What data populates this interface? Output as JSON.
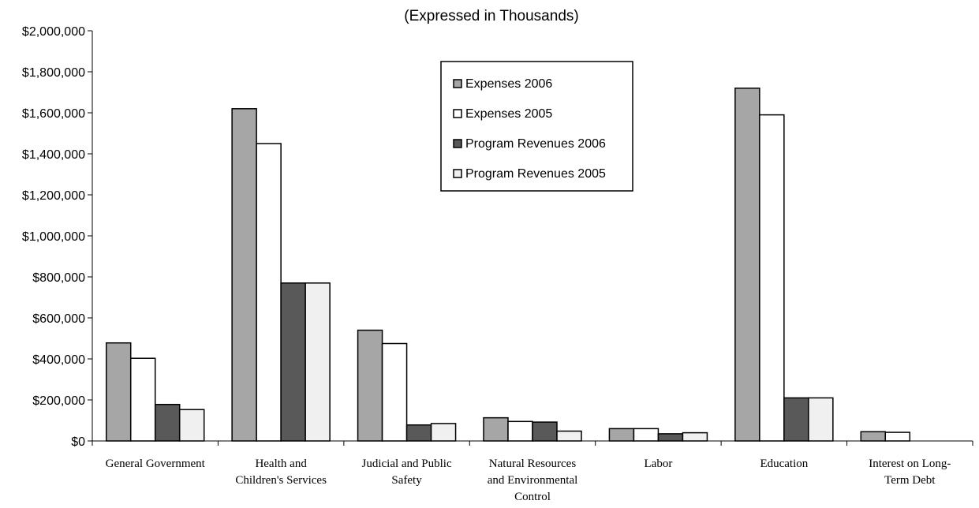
{
  "chart_data": {
    "type": "bar",
    "title": "(Expressed in Thousands)",
    "xlabel": "",
    "ylabel": "",
    "ylim": [
      0,
      2000000
    ],
    "yticks": [
      "$0",
      "$200,000",
      "$400,000",
      "$600,000",
      "$800,000",
      "$1,000,000",
      "$1,200,000",
      "$1,400,000",
      "$1,600,000",
      "$1,800,000",
      "$2,000,000"
    ],
    "ytick_values": [
      0,
      200000,
      400000,
      600000,
      800000,
      1000000,
      1200000,
      1400000,
      1600000,
      1800000,
      2000000
    ],
    "categories": [
      [
        "General Government"
      ],
      [
        "Health and",
        "Children's Services"
      ],
      [
        "Judicial and Public",
        "Safety"
      ],
      [
        "Natural Resources",
        "and Environmental",
        "Control"
      ],
      [
        "Labor"
      ],
      [
        "Education"
      ],
      [
        "Interest on Long-",
        "Term Debt"
      ]
    ],
    "series": [
      {
        "name": "Expenses 2006",
        "color": "#a6a6a6",
        "values": [
          478000,
          1620000,
          540000,
          113000,
          60000,
          1720000,
          45000
        ]
      },
      {
        "name": "Expenses 2005",
        "color": "#ffffff",
        "values": [
          403000,
          1450000,
          475000,
          95000,
          60000,
          1590000,
          42000
        ]
      },
      {
        "name": "Program Revenues 2006",
        "color": "#595959",
        "values": [
          178000,
          770000,
          78000,
          92000,
          35000,
          210000,
          0
        ]
      },
      {
        "name": "Program Revenues 2005",
        "color": "#f0f0f0",
        "values": [
          153000,
          770000,
          85000,
          48000,
          40000,
          210000,
          0
        ]
      }
    ],
    "legend": {
      "placement": "top-center",
      "entries": [
        "Expenses 2006",
        "Expenses 2005",
        "Program Revenues 2006",
        "Program Revenues 2005"
      ]
    },
    "grid": false
  }
}
